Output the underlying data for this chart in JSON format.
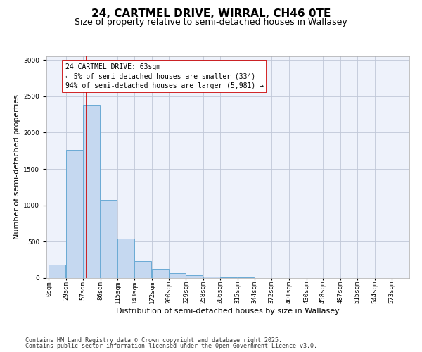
{
  "title": "24, CARTMEL DRIVE, WIRRAL, CH46 0TE",
  "subtitle": "Size of property relative to semi-detached houses in Wallasey",
  "xlabel": "Distribution of semi-detached houses by size in Wallasey",
  "ylabel": "Number of semi-detached properties",
  "bar_color": "#c5d8f0",
  "bar_edge_color": "#6aaad4",
  "background_color": "#eef2fb",
  "grid_color": "#c0c8d8",
  "annotation_text": "24 CARTMEL DRIVE: 63sqm\n← 5% of semi-detached houses are smaller (334)\n94% of semi-detached houses are larger (5,981) →",
  "vline_x": 63,
  "vline_color": "#cc0000",
  "categories": [
    "0sqm",
    "29sqm",
    "57sqm",
    "86sqm",
    "115sqm",
    "143sqm",
    "172sqm",
    "200sqm",
    "229sqm",
    "258sqm",
    "286sqm",
    "315sqm",
    "344sqm",
    "372sqm",
    "401sqm",
    "430sqm",
    "458sqm",
    "487sqm",
    "515sqm",
    "544sqm",
    "573sqm"
  ],
  "bin_edges": [
    0,
    29,
    57,
    86,
    115,
    143,
    172,
    200,
    229,
    258,
    286,
    315,
    344,
    372,
    401,
    430,
    458,
    487,
    515,
    544,
    573
  ],
  "bin_width": 28,
  "values": [
    185,
    1760,
    2380,
    1070,
    540,
    235,
    130,
    65,
    40,
    20,
    5,
    5,
    0,
    0,
    0,
    0,
    0,
    0,
    0,
    0,
    0
  ],
  "ylim": [
    0,
    3050
  ],
  "yticks": [
    0,
    500,
    1000,
    1500,
    2000,
    2500,
    3000
  ],
  "footer_line1": "Contains HM Land Registry data © Crown copyright and database right 2025.",
  "footer_line2": "Contains public sector information licensed under the Open Government Licence v3.0.",
  "title_fontsize": 11,
  "subtitle_fontsize": 9,
  "tick_fontsize": 6.5,
  "ylabel_fontsize": 8,
  "xlabel_fontsize": 8,
  "annotation_fontsize": 7,
  "footer_fontsize": 6
}
